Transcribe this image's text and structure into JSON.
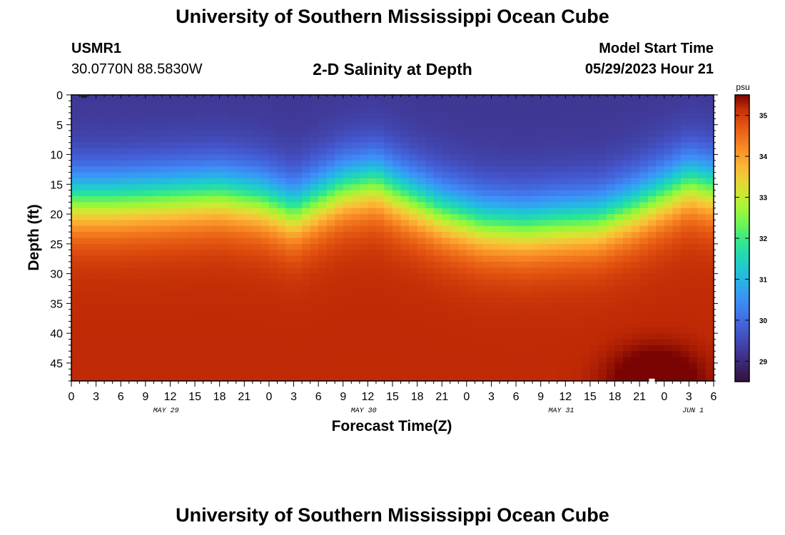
{
  "header": {
    "title": "University of Southern Mississippi Ocean Cube",
    "station": "USMR1",
    "coords": "30.0770N  88.5830W",
    "subtitle": "2-D Salinity at Depth",
    "model_start_label": "Model Start Time",
    "model_start_value": "05/29/2023 Hour 21"
  },
  "footer": {
    "title": "University of Southern Mississippi Ocean Cube"
  },
  "colors": {
    "frame": "#000000",
    "marker_dark": "#1a1a1a",
    "marker_light": "#ffffff"
  },
  "chart_data": {
    "type": "heatmap",
    "title": "2-D Salinity at Depth",
    "xlabel": "Forecast Time(Z)",
    "ylabel": "Depth (ft)",
    "x_hours_range": [
      0,
      78
    ],
    "y_depth_range": [
      0,
      48
    ],
    "x_tick_labels": [
      "0",
      "3",
      "6",
      "9",
      "12",
      "15",
      "18",
      "21",
      "0",
      "3",
      "6",
      "9",
      "12",
      "15",
      "18",
      "21",
      "0",
      "3",
      "6",
      "9",
      "12",
      "15",
      "18",
      "21",
      "0",
      "3",
      "6"
    ],
    "y_tick_values": [
      0,
      5,
      10,
      15,
      20,
      25,
      30,
      35,
      40,
      45
    ],
    "date_labels": [
      {
        "label": "MAY 29",
        "hour": 11.5
      },
      {
        "label": "MAY 30",
        "hour": 35.5
      },
      {
        "label": "MAY 31",
        "hour": 59.5
      },
      {
        "label": "JUN 1",
        "hour": 75.5
      }
    ],
    "colorbar": {
      "unit": "psu",
      "min": 28.5,
      "max": 35.5,
      "ticks": [
        29,
        30,
        31,
        32,
        33,
        34,
        35
      ]
    },
    "halocline_depth_ft": [
      {
        "hour": 0,
        "depth": 17.5
      },
      {
        "hour": 5,
        "depth": 17.5
      },
      {
        "hour": 12,
        "depth": 17.0
      },
      {
        "hour": 18,
        "depth": 16.5
      },
      {
        "hour": 23,
        "depth": 17.5
      },
      {
        "hour": 27,
        "depth": 19.5
      },
      {
        "hour": 33,
        "depth": 15.5
      },
      {
        "hour": 37,
        "depth": 14.5
      },
      {
        "hour": 40,
        "depth": 16.5
      },
      {
        "hour": 45,
        "depth": 19.5
      },
      {
        "hour": 50,
        "depth": 21.5
      },
      {
        "hour": 55,
        "depth": 22.0
      },
      {
        "hour": 59,
        "depth": 21.5
      },
      {
        "hour": 64,
        "depth": 21.0
      },
      {
        "hour": 68,
        "depth": 19.0
      },
      {
        "hour": 72,
        "depth": 16.5
      },
      {
        "hour": 75,
        "depth": 14.5
      },
      {
        "hour": 78,
        "depth": 15.5
      }
    ],
    "surface_salinity_psu": 29.2,
    "bottom_salinity_psu": 35.2,
    "bottom_max_psu": 35.5,
    "bottom_max_hour": 71,
    "markers": [
      {
        "hour": 1.5,
        "depth": 0.2,
        "color": "dark"
      },
      {
        "hour": 70.5,
        "depth": 47.8,
        "color": "light"
      }
    ]
  }
}
